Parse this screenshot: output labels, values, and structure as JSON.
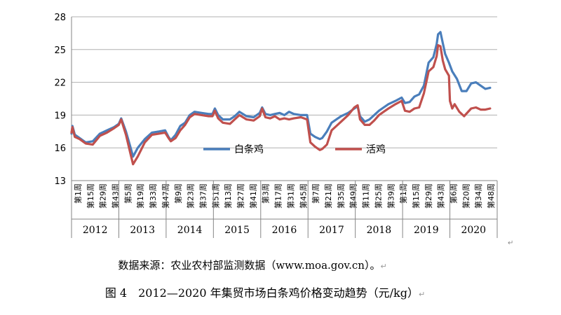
{
  "chart_data": {
    "type": "line",
    "ylim": [
      13,
      28
    ],
    "yticks": [
      "13",
      "16",
      "19",
      "22",
      "25",
      "28"
    ],
    "grid": true,
    "legend": "inside-center",
    "years": [
      "2012",
      "2013",
      "2014",
      "2015",
      "2016",
      "2017",
      "2018",
      "2019",
      "2020"
    ],
    "week_tick_labels": [
      "第1周",
      "第15周",
      "第29周",
      "第43周",
      "第5周",
      "第19周",
      "第33周",
      "第47周",
      "第9周",
      "第23周",
      "第37周",
      "第51周",
      "第13周",
      "第27周",
      "第41周",
      "第3周",
      "第17周",
      "第31周",
      "第45周",
      "第7周",
      "第21周",
      "第35周",
      "第49周",
      "第11周",
      "第25周",
      "第39周",
      "第1周",
      "第15周",
      "第29周",
      "第43周",
      "第6周",
      "第20周",
      "第34周",
      "第48周"
    ],
    "series": [
      {
        "name": "白条鸡",
        "color": "#4a7ebb",
        "points": [
          [
            0,
            17.3
          ],
          [
            0.02,
            18.0
          ],
          [
            0.07,
            17.2
          ],
          [
            0.17,
            16.9
          ],
          [
            0.3,
            16.5
          ],
          [
            0.45,
            16.6
          ],
          [
            0.6,
            17.3
          ],
          [
            0.75,
            17.6
          ],
          [
            0.9,
            17.9
          ],
          [
            1.0,
            18.2
          ],
          [
            1.05,
            18.7
          ],
          [
            1.15,
            17.5
          ],
          [
            1.25,
            16.0
          ],
          [
            1.3,
            15.2
          ],
          [
            1.4,
            16.0
          ],
          [
            1.55,
            16.8
          ],
          [
            1.7,
            17.4
          ],
          [
            1.85,
            17.5
          ],
          [
            1.98,
            17.6
          ],
          [
            2.05,
            17.0
          ],
          [
            2.1,
            16.7
          ],
          [
            2.2,
            17.2
          ],
          [
            2.3,
            18.0
          ],
          [
            2.4,
            18.3
          ],
          [
            2.5,
            19.0
          ],
          [
            2.6,
            19.3
          ],
          [
            2.75,
            19.2
          ],
          [
            2.9,
            19.1
          ],
          [
            2.98,
            19.1
          ],
          [
            3.03,
            19.6
          ],
          [
            3.1,
            19.0
          ],
          [
            3.2,
            18.6
          ],
          [
            3.35,
            18.6
          ],
          [
            3.45,
            18.9
          ],
          [
            3.55,
            19.3
          ],
          [
            3.7,
            18.9
          ],
          [
            3.85,
            18.8
          ],
          [
            3.98,
            19.2
          ],
          [
            4.03,
            19.7
          ],
          [
            4.1,
            19.1
          ],
          [
            4.2,
            19.0
          ],
          [
            4.3,
            19.1
          ],
          [
            4.4,
            19.2
          ],
          [
            4.5,
            19.0
          ],
          [
            4.6,
            19.3
          ],
          [
            4.7,
            19.1
          ],
          [
            4.85,
            19.0
          ],
          [
            4.98,
            19.0
          ],
          [
            5.05,
            17.3
          ],
          [
            5.15,
            17.0
          ],
          [
            5.25,
            16.8
          ],
          [
            5.3,
            16.9
          ],
          [
            5.4,
            17.5
          ],
          [
            5.5,
            18.3
          ],
          [
            5.6,
            18.6
          ],
          [
            5.7,
            18.9
          ],
          [
            5.85,
            19.2
          ],
          [
            5.98,
            19.6
          ],
          [
            6.05,
            19.8
          ],
          [
            6.1,
            18.9
          ],
          [
            6.2,
            18.4
          ],
          [
            6.3,
            18.6
          ],
          [
            6.4,
            19.0
          ],
          [
            6.5,
            19.4
          ],
          [
            6.6,
            19.7
          ],
          [
            6.7,
            20.0
          ],
          [
            6.85,
            20.3
          ],
          [
            6.98,
            20.6
          ],
          [
            7.05,
            20.1
          ],
          [
            7.15,
            20.2
          ],
          [
            7.25,
            20.7
          ],
          [
            7.35,
            20.9
          ],
          [
            7.45,
            21.7
          ],
          [
            7.55,
            23.8
          ],
          [
            7.65,
            24.3
          ],
          [
            7.72,
            25.5
          ],
          [
            7.75,
            26.4
          ],
          [
            7.8,
            26.6
          ],
          [
            7.85,
            25.6
          ],
          [
            7.9,
            24.6
          ],
          [
            7.98,
            23.8
          ],
          [
            8.05,
            23.0
          ],
          [
            8.15,
            22.3
          ],
          [
            8.25,
            21.2
          ],
          [
            8.35,
            21.2
          ],
          [
            8.45,
            21.9
          ],
          [
            8.55,
            22.0
          ],
          [
            8.65,
            21.7
          ],
          [
            8.75,
            21.4
          ],
          [
            8.85,
            21.5
          ]
        ]
      },
      {
        "name": "活鸡",
        "color": "#c0504d",
        "points": [
          [
            0,
            17.4
          ],
          [
            0.02,
            17.9
          ],
          [
            0.07,
            17.0
          ],
          [
            0.17,
            16.8
          ],
          [
            0.3,
            16.4
          ],
          [
            0.45,
            16.3
          ],
          [
            0.6,
            17.1
          ],
          [
            0.75,
            17.4
          ],
          [
            0.9,
            17.8
          ],
          [
            1.0,
            18.1
          ],
          [
            1.05,
            18.6
          ],
          [
            1.15,
            17.2
          ],
          [
            1.25,
            15.4
          ],
          [
            1.3,
            14.5
          ],
          [
            1.4,
            15.2
          ],
          [
            1.55,
            16.5
          ],
          [
            1.7,
            17.2
          ],
          [
            1.85,
            17.3
          ],
          [
            1.98,
            17.4
          ],
          [
            2.05,
            16.9
          ],
          [
            2.1,
            16.6
          ],
          [
            2.2,
            16.9
          ],
          [
            2.3,
            17.6
          ],
          [
            2.4,
            18.1
          ],
          [
            2.5,
            18.8
          ],
          [
            2.6,
            19.1
          ],
          [
            2.75,
            19.0
          ],
          [
            2.9,
            18.9
          ],
          [
            2.98,
            18.9
          ],
          [
            3.03,
            19.4
          ],
          [
            3.1,
            18.7
          ],
          [
            3.2,
            18.3
          ],
          [
            3.35,
            18.2
          ],
          [
            3.45,
            18.6
          ],
          [
            3.55,
            19.0
          ],
          [
            3.7,
            18.6
          ],
          [
            3.85,
            18.5
          ],
          [
            3.98,
            18.9
          ],
          [
            4.03,
            19.6
          ],
          [
            4.1,
            18.8
          ],
          [
            4.2,
            18.7
          ],
          [
            4.3,
            18.9
          ],
          [
            4.4,
            18.6
          ],
          [
            4.5,
            18.7
          ],
          [
            4.6,
            18.6
          ],
          [
            4.7,
            18.7
          ],
          [
            4.85,
            18.8
          ],
          [
            4.98,
            18.6
          ],
          [
            5.05,
            16.5
          ],
          [
            5.15,
            16.1
          ],
          [
            5.25,
            15.8
          ],
          [
            5.3,
            15.9
          ],
          [
            5.4,
            16.3
          ],
          [
            5.5,
            17.6
          ],
          [
            5.6,
            18.0
          ],
          [
            5.7,
            18.4
          ],
          [
            5.85,
            19.0
          ],
          [
            5.98,
            19.7
          ],
          [
            6.05,
            19.9
          ],
          [
            6.1,
            18.6
          ],
          [
            6.2,
            18.1
          ],
          [
            6.3,
            18.1
          ],
          [
            6.4,
            18.5
          ],
          [
            6.5,
            19.0
          ],
          [
            6.6,
            19.3
          ],
          [
            6.7,
            19.6
          ],
          [
            6.85,
            20.0
          ],
          [
            6.98,
            20.3
          ],
          [
            7.05,
            19.4
          ],
          [
            7.15,
            19.3
          ],
          [
            7.25,
            19.6
          ],
          [
            7.35,
            19.7
          ],
          [
            7.45,
            21.0
          ],
          [
            7.55,
            23.0
          ],
          [
            7.65,
            23.4
          ],
          [
            7.72,
            24.4
          ],
          [
            7.75,
            25.4
          ],
          [
            7.8,
            25.3
          ],
          [
            7.85,
            24.0
          ],
          [
            7.9,
            23.2
          ],
          [
            7.98,
            22.6
          ],
          [
            8.0,
            20.3
          ],
          [
            8.05,
            19.6
          ],
          [
            8.1,
            20.0
          ],
          [
            8.2,
            19.3
          ],
          [
            8.3,
            18.9
          ],
          [
            8.45,
            19.6
          ],
          [
            8.55,
            19.7
          ],
          [
            8.65,
            19.5
          ],
          [
            8.75,
            19.5
          ],
          [
            8.85,
            19.6
          ]
        ]
      }
    ]
  },
  "caption": {
    "source": "数据来源：农业农村部监测数据（www.moa.gov.cn）。",
    "title": "图 4　2012—2020 年集贸市场白条鸡价格变动趋势（元/kg）"
  }
}
